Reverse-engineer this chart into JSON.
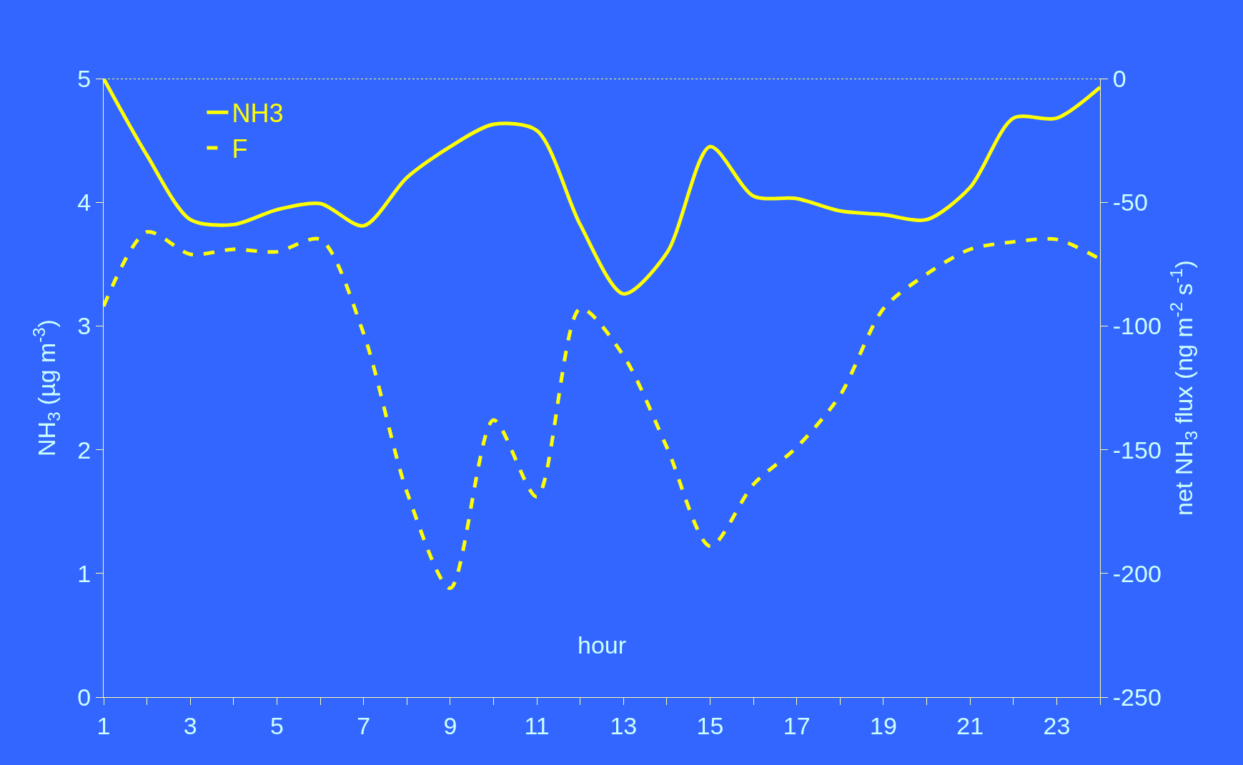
{
  "chart_data": {
    "type": "line",
    "xlabel": "hour",
    "ylabel": "NH$_{3}$ (µg m$^{-3}$)",
    "y2label": "net NH$_{3}$ flux (ng m$^{-2}$ s$^{-1}$)",
    "x": [
      1,
      2,
      3,
      4,
      5,
      6,
      7,
      8,
      9,
      10,
      11,
      12,
      13,
      14,
      15,
      16,
      17,
      18,
      19,
      20,
      21,
      22,
      23,
      24
    ],
    "series": [
      {
        "name": "NH3",
        "color": "#ffff00",
        "line_style": "solid",
        "values": [
          5.0,
          4.38,
          3.86,
          3.82,
          3.94,
          3.99,
          3.81,
          4.2,
          4.45,
          4.63,
          4.58,
          3.82,
          3.26,
          3.59,
          4.45,
          4.05,
          4.03,
          3.93,
          3.9,
          3.86,
          4.12,
          4.68,
          4.68,
          4.93
        ]
      },
      {
        "name": "F",
        "color": "#ffff00",
        "line_style": "dashed",
        "axis": "y2",
        "values": [
          -92,
          -62,
          -71,
          -69,
          -70,
          -65,
          -103,
          -167,
          -206,
          -138,
          -169,
          -93,
          -112,
          -149,
          -189,
          -164,
          -149,
          -128,
          -93,
          -79,
          -69,
          -66,
          -65,
          -73
        ]
      }
    ],
    "xlim": [
      1,
      24
    ],
    "xticks": [
      1,
      {
        "value": 2,
        "label": null
      },
      3,
      {
        "value": 4,
        "label": null
      },
      5,
      {
        "value": 6,
        "label": null
      },
      7,
      {
        "value": 8,
        "label": null
      },
      9,
      {
        "value": 10,
        "label": null
      },
      11,
      {
        "value": 12,
        "label": null
      },
      13,
      {
        "value": 14,
        "label": null
      },
      15,
      {
        "value": 16,
        "label": null
      },
      17,
      {
        "value": 18,
        "label": null
      },
      19,
      {
        "value": 20,
        "label": null
      },
      21,
      {
        "value": 22,
        "label": null
      },
      23,
      {
        "value": 24,
        "label": null
      }
    ],
    "ylim": [
      0,
      5
    ],
    "yticks": [
      0,
      1,
      2,
      3,
      4,
      5
    ],
    "y2lim": [
      -250,
      0
    ],
    "y2ticks": [
      -250,
      -200,
      -150,
      -100,
      -50,
      0
    ],
    "ref_lines": [
      {
        "axis": "y2",
        "value": 0,
        "label": null,
        "color": "#ffff66",
        "line_style": "dotted"
      }
    ],
    "grid": false,
    "legend": "top left",
    "marker": "none"
  }
}
